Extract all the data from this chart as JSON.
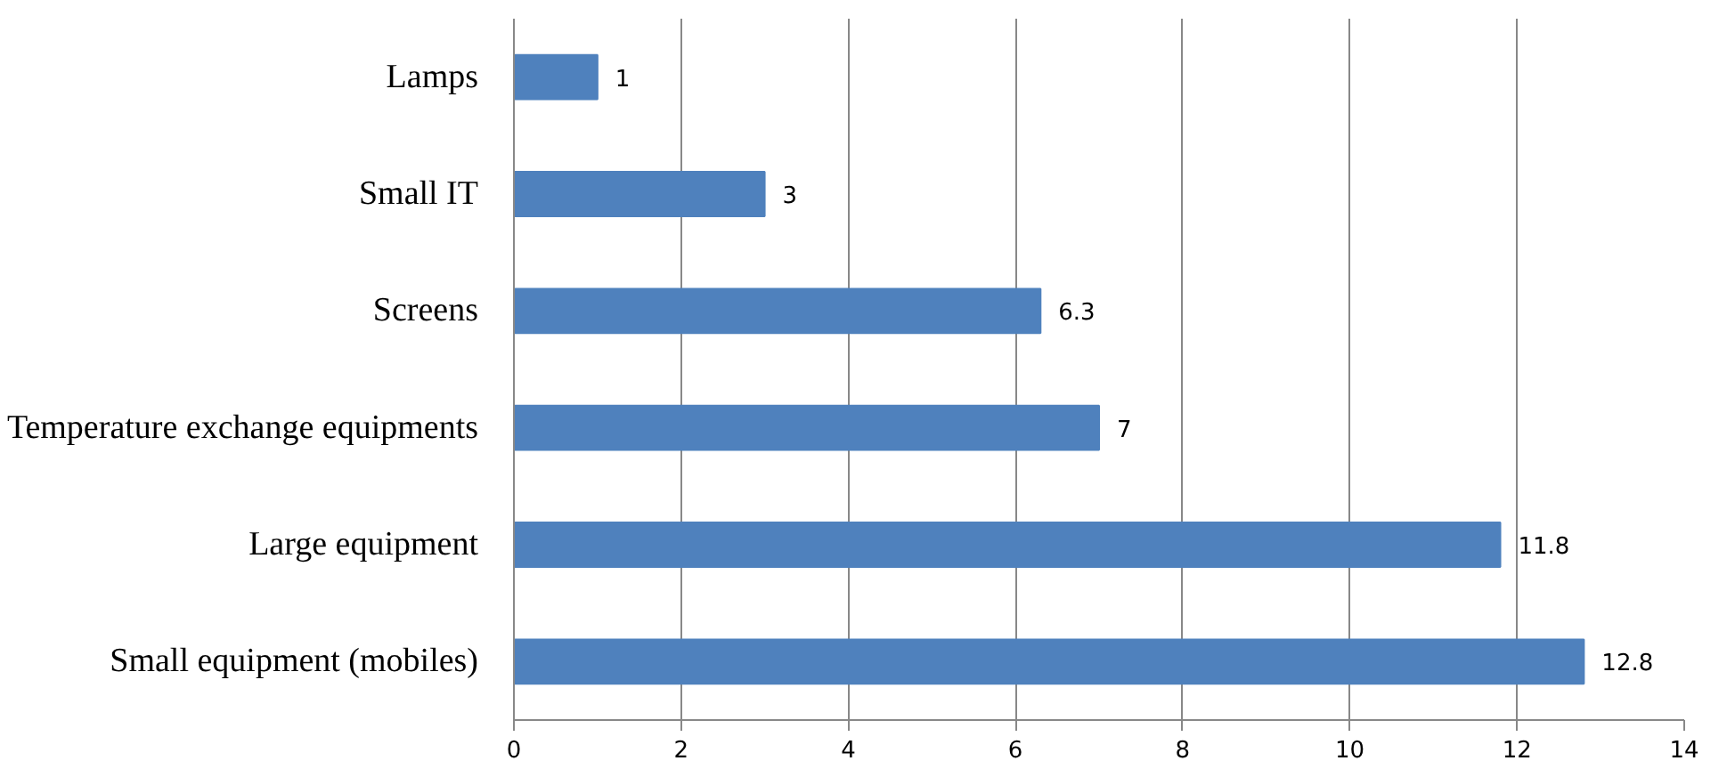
{
  "chart_data": {
    "type": "bar",
    "orientation": "horizontal",
    "categories": [
      "Lamps",
      "Small IT",
      "Screens",
      "Temperature exchange equipments",
      "Large equipment",
      "Small equipment (mobiles)"
    ],
    "values": [
      1,
      3,
      6.3,
      7,
      11.8,
      12.8
    ],
    "color": "#4f81bd",
    "xlim": [
      0,
      14
    ],
    "xticks": [
      0,
      2,
      4,
      6,
      8,
      10,
      12,
      14
    ],
    "grid": "x",
    "data_labels": true
  }
}
